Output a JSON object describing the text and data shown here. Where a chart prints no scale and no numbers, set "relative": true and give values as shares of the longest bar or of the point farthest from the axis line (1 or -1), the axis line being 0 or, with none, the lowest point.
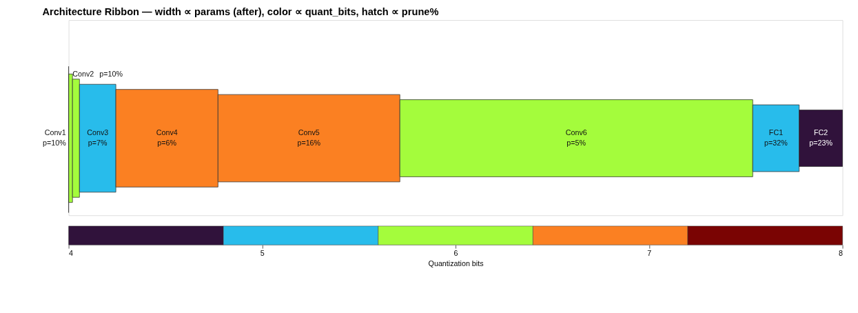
{
  "chart_data": {
    "type": "bar",
    "title": "Architecture Ribbon — width ∝ params (after), color ∝ quant_bits, hatch ∝ prune%",
    "orientation": "horizontal",
    "stacked": true,
    "relative": true,
    "categories": [
      null
    ],
    "series": [
      {
        "name": "Conv1",
        "color": "#a4fc3c",
        "values": [
          0.005
        ]
      },
      {
        "name": "Conv2",
        "color": "#a4fc3c",
        "values": [
          0.009
        ]
      },
      {
        "name": "Conv3",
        "color": "#28bceb",
        "values": [
          0.047
        ]
      },
      {
        "name": "Conv4",
        "color": "#fb8022",
        "values": [
          0.132
        ]
      },
      {
        "name": "Conv5",
        "color": "#fb8022",
        "values": [
          0.235
        ]
      },
      {
        "name": "Conv6",
        "color": "#a4fc3c",
        "values": [
          0.456
        ]
      },
      {
        "name": "FC1",
        "color": "#28bceb",
        "values": [
          0.06
        ]
      },
      {
        "name": "FC2",
        "color": "#30123b",
        "values": [
          0.056
        ]
      }
    ],
    "annotations": [
      "p=10%",
      "p=10%",
      "p=7%",
      "p=6%",
      "p=16%",
      "p=5%",
      "p=32%",
      "p=23%"
    ],
    "clabel": "Quantization bits",
    "clim": [
      4,
      8
    ],
    "cticks": [
      4,
      5,
      6,
      7,
      8
    ],
    "colors": [
      "#30123b",
      "#28bceb",
      "#a4fc3c",
      "#fb8022",
      "#7a0403"
    ]
  }
}
